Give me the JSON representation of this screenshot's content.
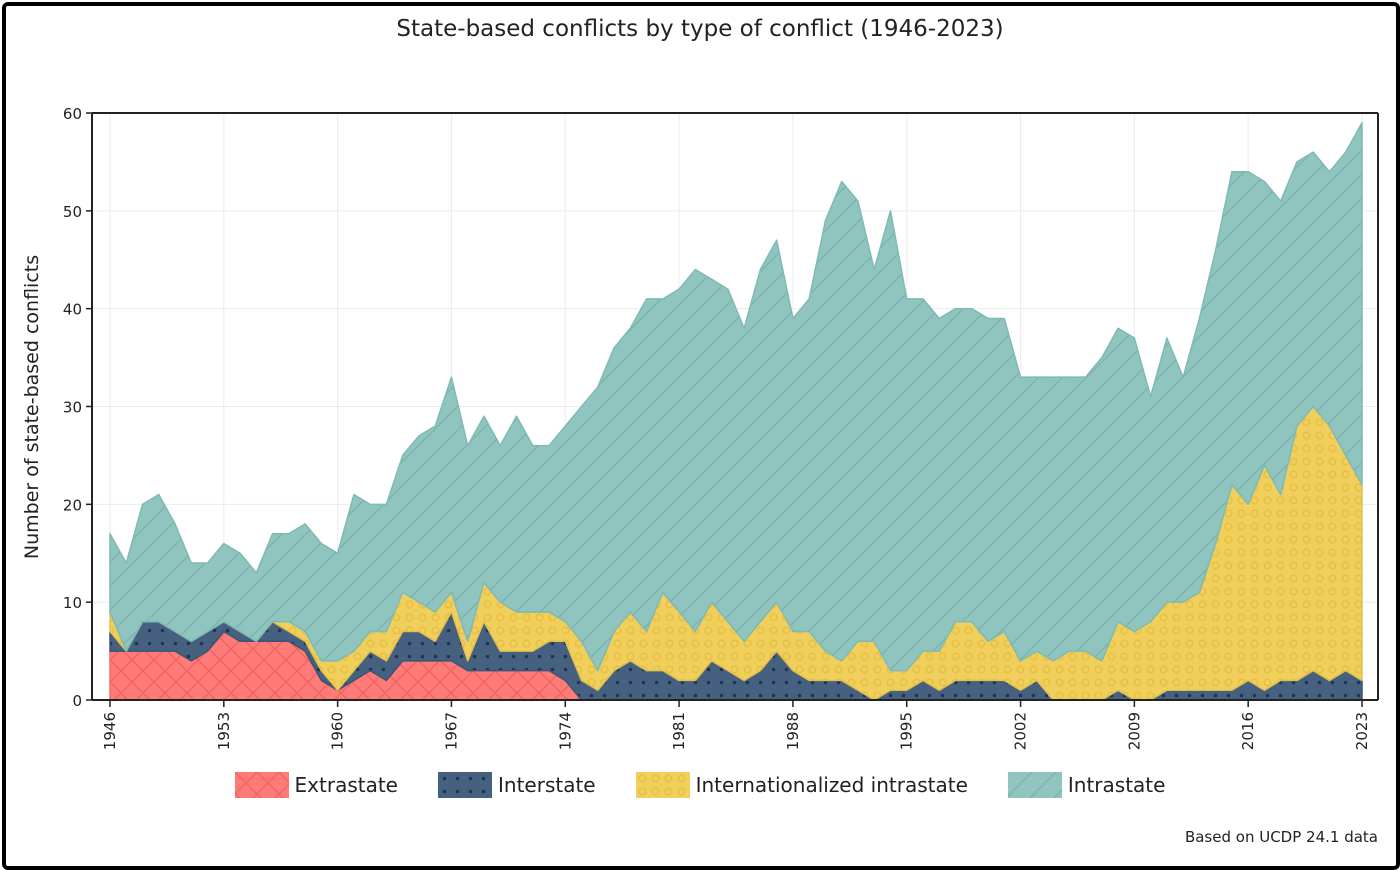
{
  "chart_data": {
    "type": "area",
    "stacked": true,
    "title": "State-based conflicts by type of conflict (1946-2023)",
    "xlabel": "",
    "ylabel": "Number of state-based conflicts",
    "ylim": [
      0,
      60
    ],
    "y_ticks": [
      0,
      10,
      20,
      30,
      40,
      50,
      60
    ],
    "x_ticks": [
      1946,
      1953,
      1960,
      1967,
      1974,
      1981,
      1988,
      1995,
      2002,
      2009,
      2016,
      2023
    ],
    "xlim": [
      1946,
      2023
    ],
    "grid": true,
    "legend_placement": "bottom",
    "x_start": 1946,
    "series": [
      {
        "name": "Extrastate",
        "color": "#ff7b78",
        "pattern": "crosshatch",
        "values": [
          5,
          5,
          5,
          5,
          5,
          4,
          5,
          7,
          6,
          6,
          6,
          6,
          5,
          2,
          1,
          2,
          3,
          2,
          4,
          4,
          4,
          4,
          3,
          3,
          3,
          3,
          3,
          3,
          2,
          0,
          0,
          0,
          0,
          0,
          0,
          0,
          0,
          0,
          0,
          0,
          0,
          0,
          0,
          0,
          0,
          0,
          0,
          0,
          0,
          0,
          0,
          0,
          0,
          0,
          0,
          0,
          0,
          0,
          0,
          0,
          0,
          0,
          0,
          0,
          0,
          0,
          0,
          0,
          0,
          0,
          0,
          0,
          0,
          0,
          0,
          0,
          0,
          0
        ]
      },
      {
        "name": "Interstate",
        "color": "#46617f",
        "pattern": "dots",
        "values": [
          2,
          0,
          3,
          3,
          2,
          2,
          2,
          1,
          1,
          0,
          2,
          1,
          1,
          1,
          0,
          1,
          2,
          2,
          3,
          3,
          2,
          5,
          1,
          5,
          2,
          2,
          2,
          3,
          4,
          2,
          1,
          3,
          4,
          3,
          3,
          2,
          2,
          4,
          3,
          2,
          3,
          5,
          3,
          2,
          2,
          2,
          1,
          0,
          1,
          1,
          2,
          1,
          2,
          2,
          2,
          2,
          1,
          2,
          0,
          0,
          0,
          0,
          1,
          0,
          0,
          1,
          1,
          1,
          1,
          1,
          2,
          1,
          2,
          2,
          3,
          2,
          3,
          2
        ]
      },
      {
        "name": "Internationalized intrastate",
        "color": "#f0cf5c",
        "pattern": "rings",
        "values": [
          2,
          0,
          0,
          0,
          0,
          0,
          0,
          0,
          0,
          0,
          0,
          1,
          1,
          1,
          3,
          2,
          2,
          3,
          4,
          3,
          3,
          2,
          2,
          4,
          5,
          4,
          4,
          3,
          2,
          4,
          2,
          4,
          5,
          4,
          8,
          7,
          5,
          6,
          5,
          4,
          5,
          5,
          4,
          5,
          3,
          2,
          5,
          6,
          2,
          2,
          3,
          4,
          6,
          6,
          4,
          5,
          3,
          3,
          4,
          5,
          5,
          4,
          7,
          7,
          8,
          9,
          9,
          10,
          15,
          21,
          18,
          23,
          19,
          26,
          27,
          26,
          22,
          20
        ]
      },
      {
        "name": "Intrastate",
        "color": "#8fc4bf",
        "pattern": "diagonal",
        "values": [
          8,
          9,
          12,
          13,
          11,
          8,
          7,
          8,
          8,
          7,
          9,
          9,
          11,
          12,
          11,
          16,
          13,
          13,
          14,
          17,
          19,
          22,
          20,
          17,
          16,
          20,
          17,
          17,
          20,
          24,
          29,
          29,
          29,
          34,
          30,
          33,
          37,
          33,
          34,
          32,
          36,
          37,
          32,
          34,
          44,
          49,
          45,
          38,
          47,
          38,
          36,
          34,
          32,
          32,
          33,
          32,
          29,
          28,
          29,
          28,
          28,
          31,
          30,
          30,
          23,
          27,
          23,
          28,
          30,
          32,
          34,
          29,
          30,
          27,
          26,
          26,
          31,
          37
        ]
      }
    ],
    "source_note": "Based on UCDP 24.1 data"
  }
}
